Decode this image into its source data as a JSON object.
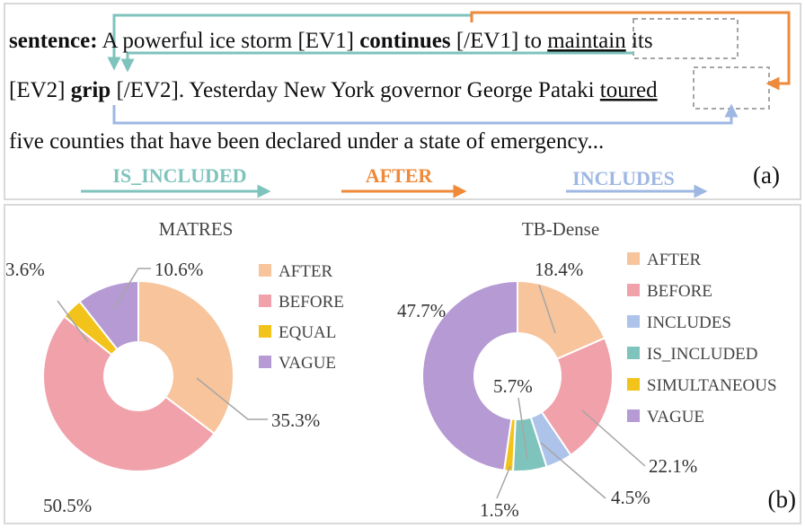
{
  "colors": {
    "AFTER": "#f7c49b",
    "BEFORE": "#f0a1aa",
    "EQUAL": "#f2c31a",
    "VAGUE": "#b69ad4",
    "INCLUDES": "#adc3ea",
    "IS_INCLUDED": "#7fc3bd",
    "SIMULTANEOUS": "#f2c31a",
    "teal_arrow": "#7fc3bd",
    "orange_arrow": "#ee8a3a",
    "blue_arrow": "#9fb7e3"
  },
  "panel_a": {
    "label": "(a)",
    "line1": {
      "prefix": "sentence:",
      "part1": " A powerful ice storm [EV1] ",
      "ev1": "continues",
      "part2": " [/EV1] to ",
      "maintain": "maintain",
      "part3": " its"
    },
    "line2": {
      "part1": "[EV2] ",
      "ev2": "grip",
      "part2": " [/EV2]. Yesterday New York governor George Pataki ",
      "toured": "toured"
    },
    "line3": "five counties that have been declared under a state of emergency...",
    "legend": {
      "is_included": "IS_INCLUDED",
      "after": "AFTER",
      "includes": "INCLUDES"
    }
  },
  "panel_b": {
    "label": "(b)"
  },
  "chart_data": [
    {
      "type": "pie",
      "subtype": "donut",
      "title": "MATRES",
      "labels": [
        "AFTER",
        "BEFORE",
        "EQUAL",
        "VAGUE"
      ],
      "values": [
        35.3,
        50.5,
        3.6,
        10.6
      ],
      "value_labels": [
        "35.3%",
        "50.5%",
        "3.6%",
        "10.6%"
      ],
      "legend_position": "right"
    },
    {
      "type": "pie",
      "subtype": "donut",
      "title": "TB-Dense",
      "labels": [
        "AFTER",
        "BEFORE",
        "INCLUDES",
        "IS_INCLUDED",
        "SIMULTANEOUS",
        "VAGUE"
      ],
      "values": [
        18.4,
        22.1,
        4.5,
        5.7,
        1.5,
        47.7
      ],
      "value_labels": [
        "18.4%",
        "22.1%",
        "4.5%",
        "5.7%",
        "1.5%",
        "47.7%"
      ],
      "legend_position": "right"
    }
  ]
}
